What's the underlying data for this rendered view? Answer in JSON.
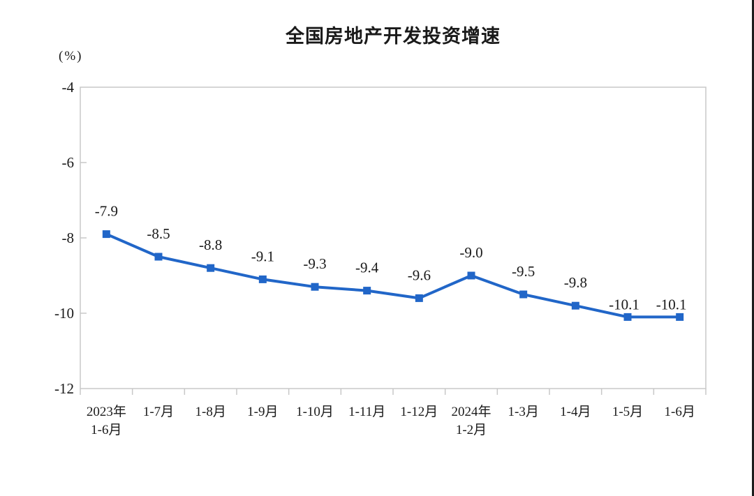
{
  "chart_data": {
    "type": "line",
    "title": "全国房地产开发投资增速",
    "unit_label": "(%)",
    "categories": [
      "2023年\n1-6月",
      "1-7月",
      "1-8月",
      "1-9月",
      "1-10月",
      "1-11月",
      "1-12月",
      "2024年\n1-2月",
      "1-3月",
      "1-4月",
      "1-5月",
      "1-6月"
    ],
    "values": [
      -7.9,
      -8.5,
      -8.8,
      -9.1,
      -9.3,
      -9.4,
      -9.6,
      -9.0,
      -9.5,
      -9.8,
      -10.1,
      -10.1
    ],
    "data_labels": [
      "-7.9",
      "-8.5",
      "-8.8",
      "-9.1",
      "-9.3",
      "-9.4",
      "-9.6",
      "-9.0",
      "-9.5",
      "-9.8",
      "-10.1",
      "-10.1"
    ],
    "y_ticks": [
      "-4",
      "-6",
      "-8",
      "-10",
      "-12"
    ],
    "ylim": [
      -12,
      -4
    ],
    "grid": false,
    "legend": "none",
    "marker": "square",
    "series_color": "#2166c8",
    "axis_color": "#c8c8c8",
    "label_color": "#1a1a1a"
  }
}
